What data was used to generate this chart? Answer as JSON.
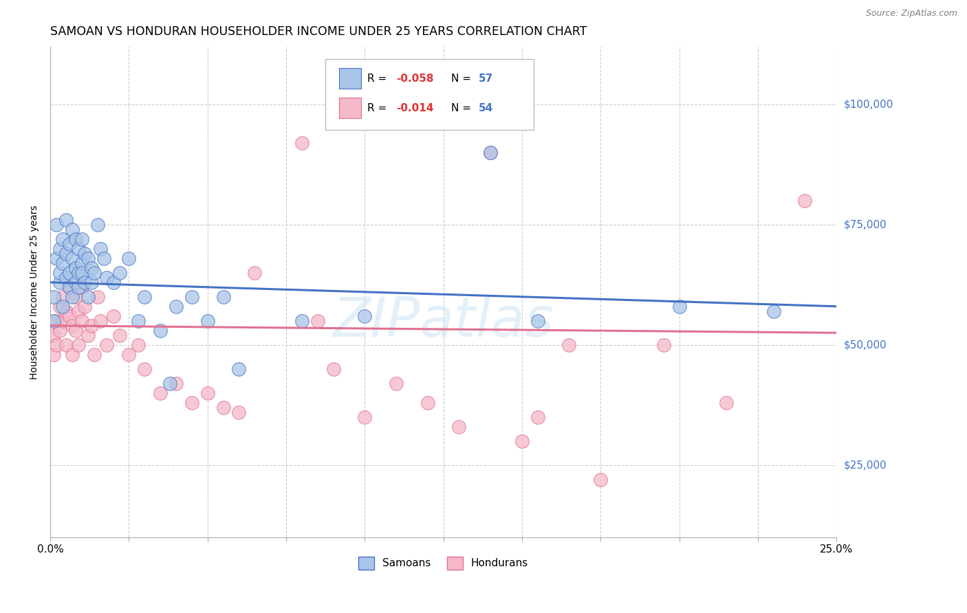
{
  "title": "SAMOAN VS HONDURAN HOUSEHOLDER INCOME UNDER 25 YEARS CORRELATION CHART",
  "source": "Source: ZipAtlas.com",
  "ylabel": "Householder Income Under 25 years",
  "watermark": "ZIPatlas",
  "samoan_color": "#a8c4e8",
  "honduran_color": "#f4b8c8",
  "samoan_line_color": "#4472c4",
  "honduran_line_color": "#e07090",
  "right_label_color": "#4472c4",
  "xlim": [
    0.0,
    0.25
  ],
  "ylim": [
    10000,
    112000
  ],
  "yticks": [
    25000,
    50000,
    75000,
    100000
  ],
  "background_color": "#ffffff",
  "grid_color": "#cccccc",
  "title_fontsize": 12.5,
  "samoan_r": "-0.058",
  "samoan_n": "57",
  "honduran_r": "-0.014",
  "honduran_n": "54",
  "samoan_scatter_x": [
    0.001,
    0.001,
    0.002,
    0.002,
    0.003,
    0.003,
    0.003,
    0.004,
    0.004,
    0.004,
    0.005,
    0.005,
    0.005,
    0.006,
    0.006,
    0.006,
    0.007,
    0.007,
    0.007,
    0.008,
    0.008,
    0.008,
    0.009,
    0.009,
    0.009,
    0.01,
    0.01,
    0.01,
    0.011,
    0.011,
    0.012,
    0.012,
    0.013,
    0.013,
    0.014,
    0.015,
    0.016,
    0.017,
    0.018,
    0.02,
    0.022,
    0.025,
    0.028,
    0.03,
    0.035,
    0.038,
    0.04,
    0.045,
    0.05,
    0.055,
    0.06,
    0.08,
    0.1,
    0.14,
    0.155,
    0.2,
    0.23
  ],
  "samoan_scatter_y": [
    60000,
    55000,
    75000,
    68000,
    63000,
    70000,
    65000,
    72000,
    67000,
    58000,
    76000,
    69000,
    64000,
    71000,
    65000,
    62000,
    74000,
    68000,
    60000,
    66000,
    72000,
    63000,
    65000,
    70000,
    62000,
    67000,
    72000,
    65000,
    63000,
    69000,
    68000,
    60000,
    66000,
    63000,
    65000,
    75000,
    70000,
    68000,
    64000,
    63000,
    65000,
    68000,
    55000,
    60000,
    53000,
    42000,
    58000,
    60000,
    55000,
    60000,
    45000,
    55000,
    56000,
    90000,
    55000,
    58000,
    57000
  ],
  "honduran_scatter_x": [
    0.001,
    0.001,
    0.002,
    0.002,
    0.003,
    0.003,
    0.004,
    0.004,
    0.005,
    0.005,
    0.006,
    0.006,
    0.007,
    0.007,
    0.008,
    0.008,
    0.009,
    0.009,
    0.01,
    0.01,
    0.011,
    0.012,
    0.013,
    0.014,
    0.015,
    0.016,
    0.018,
    0.02,
    0.022,
    0.025,
    0.028,
    0.03,
    0.035,
    0.04,
    0.045,
    0.05,
    0.055,
    0.06,
    0.065,
    0.08,
    0.085,
    0.09,
    0.1,
    0.11,
    0.12,
    0.13,
    0.14,
    0.15,
    0.155,
    0.165,
    0.175,
    0.195,
    0.215,
    0.24
  ],
  "honduran_scatter_y": [
    52000,
    48000,
    55000,
    50000,
    58000,
    53000,
    60000,
    55000,
    57000,
    50000,
    62000,
    56000,
    54000,
    48000,
    60000,
    53000,
    57000,
    50000,
    62000,
    55000,
    58000,
    52000,
    54000,
    48000,
    60000,
    55000,
    50000,
    56000,
    52000,
    48000,
    50000,
    45000,
    40000,
    42000,
    38000,
    40000,
    37000,
    36000,
    65000,
    92000,
    55000,
    45000,
    35000,
    42000,
    38000,
    33000,
    90000,
    30000,
    35000,
    50000,
    22000,
    50000,
    38000,
    80000
  ],
  "samoan_trend_x": [
    0.0,
    0.25
  ],
  "samoan_trend_y": [
    63000,
    58000
  ],
  "honduran_trend_x": [
    0.0,
    0.25
  ],
  "honduran_trend_y": [
    54000,
    52500
  ]
}
